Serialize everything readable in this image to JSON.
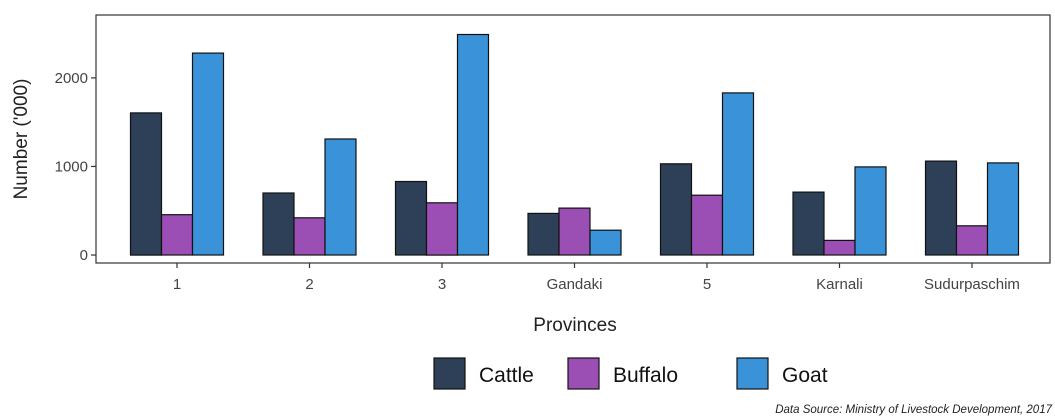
{
  "chart_data": {
    "type": "bar",
    "title": "",
    "xlabel": "Provinces",
    "ylabel": "Number ('000)",
    "categories": [
      "1",
      "2",
      "3",
      "Gandaki",
      "5",
      "Karnali",
      "Sudurpaschim"
    ],
    "series": [
      {
        "name": "Cattle",
        "color": "#2e4057",
        "values": [
          1605,
          700,
          830,
          470,
          1030,
          710,
          1060
        ]
      },
      {
        "name": "Buffalo",
        "color": "#9b4fb4",
        "values": [
          455,
          420,
          590,
          530,
          675,
          165,
          330
        ]
      },
      {
        "name": "Goat",
        "color": "#3a93d8",
        "values": [
          2280,
          1310,
          2490,
          280,
          1830,
          995,
          1040
        ]
      }
    ],
    "yticks": [
      0,
      1000,
      2000
    ],
    "ytick_labels": [
      "0",
      "1000",
      "2000"
    ],
    "ylim": [
      -90,
      2710
    ],
    "grid": false,
    "legend_position": "bottom",
    "source_note": "Data Source: Ministry of Livestock Development, 2017"
  }
}
